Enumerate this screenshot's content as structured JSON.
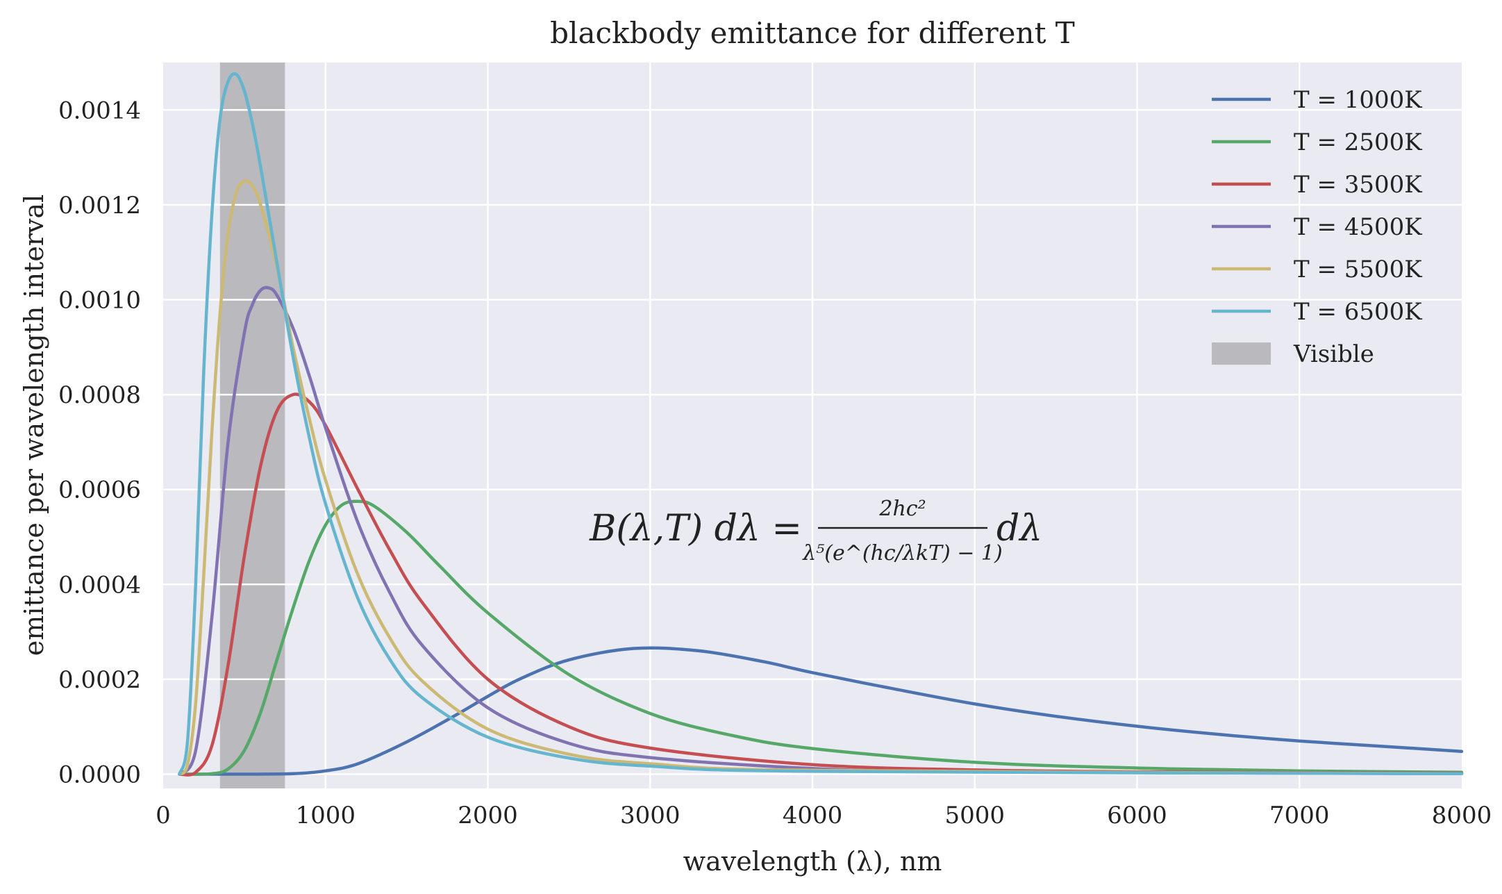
{
  "chart_data": {
    "type": "line",
    "title": "blackbody emittance for different T",
    "xlabel": "wavelength (λ), nm",
    "ylabel": "emittance per wavelength interval",
    "xlim": [
      0,
      8000
    ],
    "ylim": [
      -3e-05,
      0.0015
    ],
    "x_ticks": [
      "0",
      "1000",
      "2000",
      "3000",
      "4000",
      "5000",
      "6000",
      "7000",
      "8000"
    ],
    "y_ticks": [
      "0.0000",
      "0.0002",
      "0.0004",
      "0.0006",
      "0.0008",
      "0.0010",
      "0.0012",
      "0.0014"
    ],
    "grid": true,
    "legend_position": "top-right",
    "visible_band": {
      "label": "Visible",
      "x_range": [
        350,
        750
      ],
      "color": "#b9b9be"
    },
    "formula": {
      "lhs": "B(λ,T) dλ =",
      "numerator": "2hc²",
      "denominator": "λ⁵(e^(hc/λkT) − 1)",
      "rhs": "dλ"
    },
    "series": [
      {
        "name": "T = 1000K",
        "color": "#4c72b0",
        "x": [
          100,
          500,
          800,
          1000,
          1200,
          1500,
          1800,
          2000,
          2200,
          2500,
          2900,
          3300,
          3700,
          4000,
          4500,
          5000,
          5500,
          6000,
          6500,
          7000,
          7500,
          8000
        ],
        "y": [
          0,
          0,
          1e-06,
          7e-06,
          2.2e-05,
          6.8e-05,
          0.000124,
          0.000164,
          0.000201,
          0.000241,
          0.000265,
          0.00026,
          0.000237,
          0.000214,
          0.00018,
          0.000148,
          0.000122,
          0.000101,
          8.4e-05,
          7e-05,
          5.9e-05,
          4.8e-05
        ]
      },
      {
        "name": "T = 2500K",
        "color": "#55a868",
        "x": [
          100,
          300,
          400,
          500,
          600,
          700,
          800,
          900,
          1000,
          1100,
          1200,
          1300,
          1500,
          1700,
          2000,
          2500,
          3000,
          3500,
          4000,
          5000,
          6000,
          7000,
          8000
        ],
        "y": [
          0,
          1e-06,
          1.1e-05,
          5e-05,
          0.00013,
          0.00024,
          0.00035,
          0.00045,
          0.000525,
          0.000567,
          0.000575,
          0.000565,
          0.00051,
          0.00044,
          0.00034,
          0.00021,
          0.000128,
          8.2e-05,
          5.4e-05,
          2.5e-05,
          1.3e-05,
          7e-06,
          4e-06
        ]
      },
      {
        "name": "T = 3500K",
        "color": "#c44e52",
        "x": [
          100,
          200,
          300,
          400,
          500,
          600,
          700,
          800,
          900,
          1000,
          1200,
          1400,
          1600,
          2000,
          2500,
          3000,
          4000,
          5000,
          6000,
          8000
        ],
        "y": [
          0,
          4e-06,
          6e-05,
          0.00023,
          0.00046,
          0.00065,
          0.000765,
          0.0008,
          0.000785,
          0.000735,
          0.0006,
          0.00047,
          0.00036,
          0.0002,
          0.0001,
          5.5e-05,
          2e-05,
          9e-06,
          5e-06,
          2e-06
        ]
      },
      {
        "name": "T = 4500K",
        "color": "#8172b2",
        "x": [
          100,
          200,
          300,
          400,
          500,
          550,
          600,
          650,
          700,
          800,
          900,
          1000,
          1200,
          1400,
          1600,
          2000,
          2500,
          3000,
          4000,
          5000,
          8000
        ],
        "y": [
          0,
          5e-05,
          0.00033,
          0.0007,
          0.00093,
          0.00099,
          0.00102,
          0.001025,
          0.00101,
          0.00094,
          0.00084,
          0.00073,
          0.00053,
          0.00038,
          0.00027,
          0.00014,
          6.5e-05,
          3.5e-05,
          1.2e-05,
          5e-06,
          1e-06
        ]
      },
      {
        "name": "T = 5500K",
        "color": "#ccb974",
        "x": [
          100,
          150,
          200,
          250,
          300,
          350,
          400,
          450,
          500,
          550,
          600,
          700,
          800,
          900,
          1000,
          1200,
          1400,
          1600,
          2000,
          2500,
          3000,
          4000,
          8000
        ],
        "y": [
          0,
          2e-05,
          0.00015,
          0.00042,
          0.00072,
          0.00097,
          0.00114,
          0.001225,
          0.00125,
          0.00124,
          0.0012,
          0.00107,
          0.0009,
          0.00075,
          0.00062,
          0.00042,
          0.000285,
          0.000195,
          9.5e-05,
          4.2e-05,
          2.2e-05,
          8e-06,
          1e-06
        ]
      },
      {
        "name": "T = 6500K",
        "color": "#64b5cd",
        "x": [
          100,
          150,
          200,
          250,
          300,
          350,
          400,
          450,
          500,
          550,
          600,
          700,
          800,
          900,
          1000,
          1200,
          1400,
          1600,
          2000,
          2500,
          3000,
          4000,
          8000
        ],
        "y": [
          0,
          7e-05,
          0.0004,
          0.00085,
          0.00118,
          0.00138,
          0.00146,
          0.001475,
          0.00144,
          0.00137,
          0.00128,
          0.00108,
          0.00088,
          0.00071,
          0.00057,
          0.00037,
          0.00024,
          0.00016,
          7.8e-05,
          3.4e-05,
          1.7e-05,
          6e-06,
          1e-06
        ]
      }
    ]
  }
}
